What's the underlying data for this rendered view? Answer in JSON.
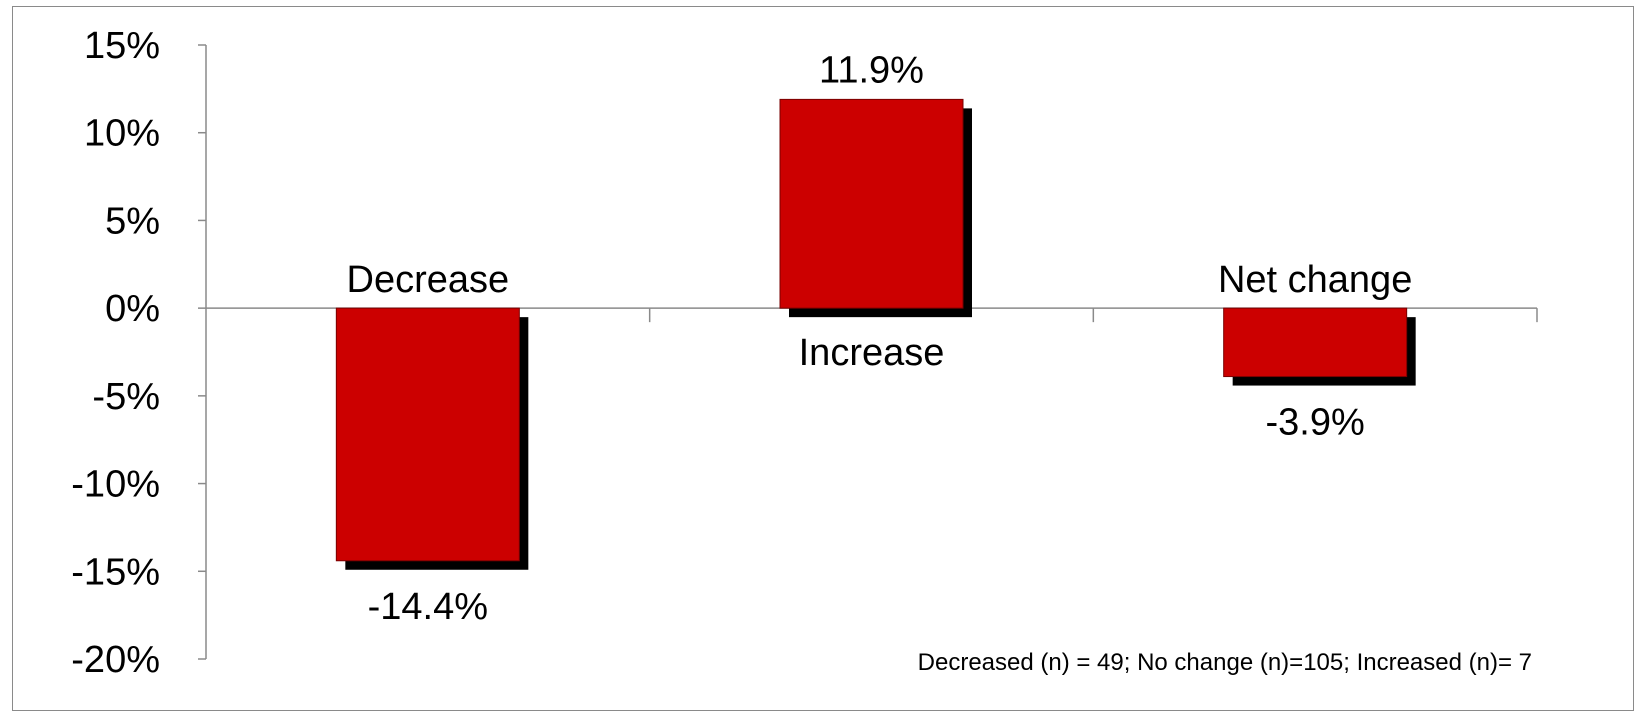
{
  "chart_data": {
    "type": "bar",
    "categories": [
      "Decrease",
      "Increase",
      "Net change"
    ],
    "values": [
      -14.4,
      11.9,
      -3.9
    ],
    "value_labels": [
      "-14.4%",
      "11.9%",
      "-3.9%"
    ],
    "title": "",
    "xlabel": "",
    "ylabel": "",
    "ylim": [
      -20,
      15
    ],
    "yticks": [
      15,
      10,
      5,
      0,
      -5,
      -10,
      -15,
      -20
    ],
    "ytick_labels": [
      "15%",
      "10%",
      "5%",
      "0%",
      "-5%",
      "-10%",
      "-15%",
      "-20%"
    ],
    "grid": false,
    "legend": "none",
    "bar_color": "#cc0000",
    "shadow_color": "#000000",
    "annotation": "Decreased (n) = 49; No change (n)=105; Increased (n)= 7"
  }
}
